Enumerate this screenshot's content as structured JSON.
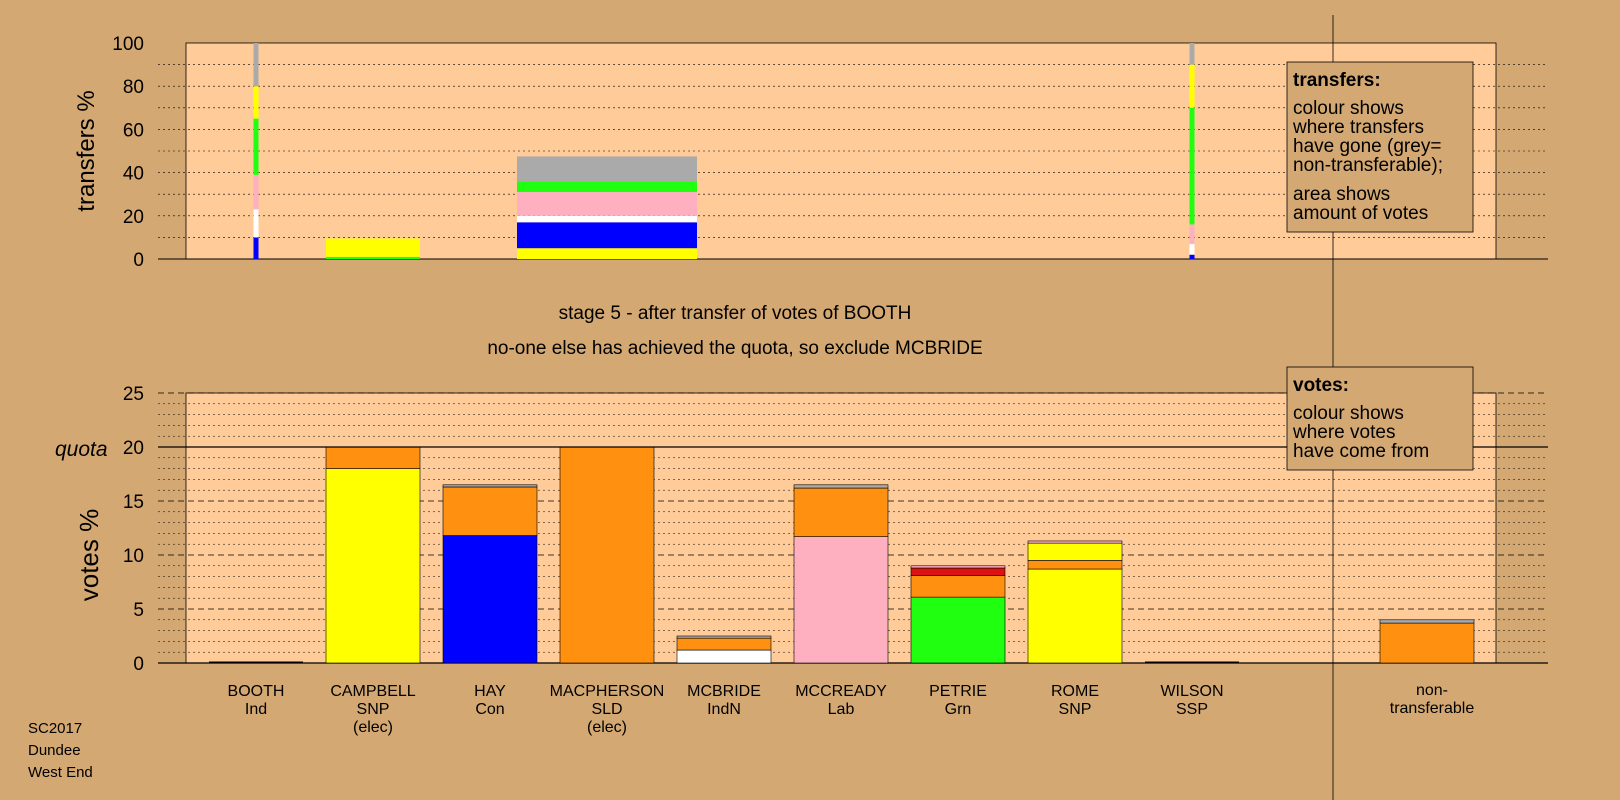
{
  "title_line1": "stage 5 - after transfer of votes of BOOTH",
  "title_line2": "no-one else has achieved the quota, so exclude MCBRIDE",
  "footer": [
    "SC2017",
    "Dundee",
    "West End"
  ],
  "colors": {
    "background": "#d4a872",
    "plot_bg": "#ffcc99",
    "Ind": "#a0a0a0",
    "SNP": "#ffff00",
    "Con": "#0000ff",
    "SLD": "#ff9010",
    "IndN": "#ffffff",
    "Lab": "#ffb0c0",
    "Grn": "#20ff10",
    "Red": "#dd1111",
    "SSP": "#dd1111",
    "NT": "#aaaaaa"
  },
  "transfers_box": {
    "heading": "transfers:",
    "lines1": [
      "colour shows",
      "where transfers",
      "have gone (grey=",
      "non-transferable);"
    ],
    "lines2": [
      "area shows",
      "amount of votes"
    ]
  },
  "votes_box": {
    "heading": "votes:",
    "lines": [
      "colour shows",
      "where votes",
      "have come from"
    ]
  },
  "chart_data": [
    {
      "type": "bar",
      "name": "transfers",
      "ylabel": "transfers %",
      "ylim": [
        0,
        100
      ],
      "yticks": [
        0,
        20,
        40,
        60,
        80,
        100
      ],
      "grid": true,
      "note": "stacked bar width proportional to votes transferred",
      "bars": [
        {
          "category": "BOOTH",
          "segments": [
            {
              "party": "Con",
              "value": 10
            },
            {
              "party": "IndN",
              "value": 13
            },
            {
              "party": "Lab",
              "value": 16
            },
            {
              "party": "Grn",
              "value": 26
            },
            {
              "party": "SNP",
              "value": 15
            },
            {
              "party": "NT",
              "value": 20
            }
          ]
        },
        {
          "category": "CAMPBELL",
          "segments": [
            {
              "party": "Grn",
              "value": 1
            },
            {
              "party": "SNP",
              "value": 8.5
            }
          ]
        },
        {
          "category": "MACPHERSON",
          "segments": [
            {
              "party": "SNP",
              "value": 5
            },
            {
              "party": "Con",
              "value": 12
            },
            {
              "party": "IndN",
              "value": 3
            },
            {
              "party": "Lab",
              "value": 11
            },
            {
              "party": "Grn",
              "value": 5
            },
            {
              "party": "NT",
              "value": 11.5
            }
          ]
        },
        {
          "category": "WILSON",
          "segments": [
            {
              "party": "Con",
              "value": 2
            },
            {
              "party": "IndN",
              "value": 5
            },
            {
              "party": "Lab",
              "value": 9
            },
            {
              "party": "Grn",
              "value": 54
            },
            {
              "party": "SNP",
              "value": 20
            },
            {
              "party": "NT",
              "value": 10
            }
          ]
        }
      ]
    },
    {
      "type": "bar",
      "name": "votes",
      "ylabel": "votes %",
      "ylim": [
        0,
        25
      ],
      "yticks": [
        0,
        5,
        10,
        15,
        20,
        25
      ],
      "quota": 20,
      "quota_label": "quota",
      "grid": true,
      "categories": [
        {
          "name": "BOOTH",
          "party": "Ind",
          "elected": ""
        },
        {
          "name": "CAMPBELL",
          "party": "SNP",
          "elected": "(elec)"
        },
        {
          "name": "HAY",
          "party": "Con",
          "elected": ""
        },
        {
          "name": "MACPHERSON",
          "party": "SLD",
          "elected": "(elec)"
        },
        {
          "name": "MCBRIDE",
          "party": "IndN",
          "elected": ""
        },
        {
          "name": "MCCREADY",
          "party": "Lab",
          "elected": ""
        },
        {
          "name": "PETRIE",
          "party": "Grn",
          "elected": ""
        },
        {
          "name": "ROME",
          "party": "SNP",
          "elected": ""
        },
        {
          "name": "WILSON",
          "party": "SSP",
          "elected": ""
        }
      ],
      "nontransferable": {
        "label1": "non-",
        "label2": "transferable"
      },
      "stacks": [
        [],
        [
          {
            "party": "SNP",
            "value": 18.0
          },
          {
            "party": "SLD",
            "value": 2.0
          }
        ],
        [
          {
            "party": "Con",
            "value": 11.8
          },
          {
            "party": "SLD",
            "value": 4.5
          },
          {
            "party": "NT",
            "value": 0.2
          }
        ],
        [
          {
            "party": "SLD",
            "value": 20.0
          }
        ],
        [
          {
            "party": "IndN",
            "value": 1.2
          },
          {
            "party": "SLD",
            "value": 1.1
          },
          {
            "party": "NT",
            "value": 0.2
          }
        ],
        [
          {
            "party": "Lab",
            "value": 11.7
          },
          {
            "party": "SLD",
            "value": 4.5
          },
          {
            "party": "NT",
            "value": 0.3
          }
        ],
        [
          {
            "party": "Grn",
            "value": 6.1
          },
          {
            "party": "SLD",
            "value": 2.0
          },
          {
            "party": "Red",
            "value": 0.7
          },
          {
            "party": "Lab",
            "value": 0.2
          }
        ],
        [
          {
            "party": "SNP",
            "value": 8.7
          },
          {
            "party": "SLD",
            "value": 0.8
          },
          {
            "party": "SNP",
            "value": 1.6
          },
          {
            "party": "Lab",
            "value": 0.2
          }
        ],
        [],
        [
          {
            "party": "SLD",
            "value": 3.7
          },
          {
            "party": "NT",
            "value": 0.3
          }
        ]
      ]
    }
  ]
}
